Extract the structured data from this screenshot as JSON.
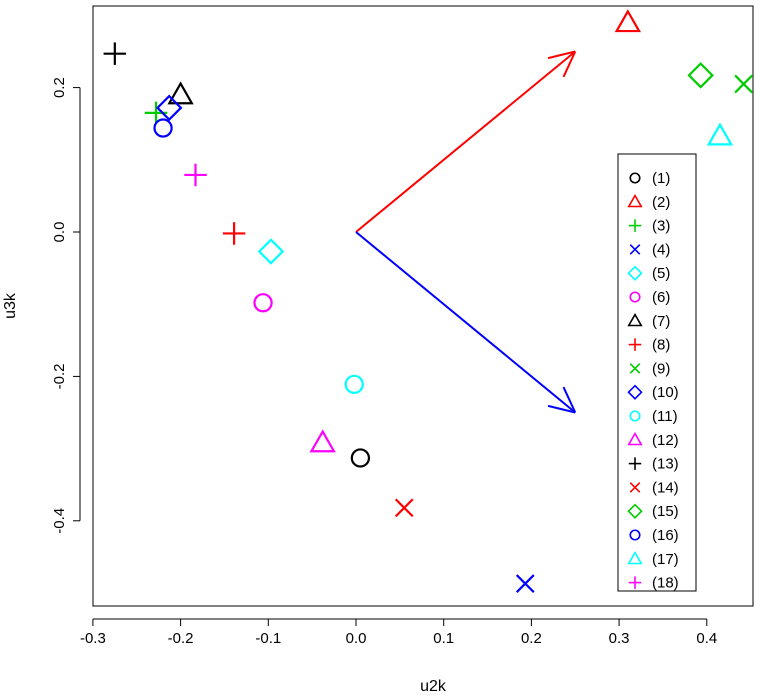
{
  "chart_data": {
    "type": "scatter",
    "xlabel": "u2k",
    "ylabel": "u3k",
    "xlim": [
      -0.3,
      0.45
    ],
    "ylim": [
      -0.52,
      0.31
    ],
    "x_ticks": [
      -0.3,
      -0.2,
      -0.1,
      0.0,
      0.1,
      0.2,
      0.3,
      0.4
    ],
    "x_tick_labels": [
      "-0.3",
      "-0.2",
      "-0.1",
      "0.0",
      "0.1",
      "0.2",
      "0.3",
      "0.4"
    ],
    "y_ticks": [
      -0.4,
      -0.2,
      0.0,
      0.2
    ],
    "y_tick_labels": [
      "-0.4",
      "-0.2",
      "0.0",
      "0.2"
    ],
    "grid": false,
    "legend_position": "right",
    "points": [
      {
        "label": "(1)",
        "x": 0.005,
        "y": -0.313,
        "shape": "circle",
        "color": "#000000"
      },
      {
        "label": "(2)",
        "x": 0.31,
        "y": 0.29,
        "shape": "triangle",
        "color": "#FF0000"
      },
      {
        "label": "(3)",
        "x": -0.228,
        "y": 0.165,
        "shape": "plus",
        "color": "#00CD00"
      },
      {
        "label": "(4)",
        "x": 0.193,
        "y": -0.487,
        "shape": "cross",
        "color": "#0000FF"
      },
      {
        "label": "(5)",
        "x": -0.097,
        "y": -0.027,
        "shape": "diamond",
        "color": "#00FFFF"
      },
      {
        "label": "(6)",
        "x": -0.106,
        "y": -0.098,
        "shape": "circle",
        "color": "#FF00FF"
      },
      {
        "label": "(7)",
        "x": -0.2,
        "y": 0.19,
        "shape": "triangle",
        "color": "#000000"
      },
      {
        "label": "(8)",
        "x": -0.139,
        "y": -0.002,
        "shape": "plus",
        "color": "#FF0000"
      },
      {
        "label": "(9)",
        "x": 0.442,
        "y": 0.205,
        "shape": "cross",
        "color": "#00CD00"
      },
      {
        "label": "(10)",
        "x": -0.213,
        "y": 0.172,
        "shape": "diamond",
        "color": "#0000FF"
      },
      {
        "label": "(11)",
        "x": -0.002,
        "y": -0.211,
        "shape": "circle",
        "color": "#00FFFF"
      },
      {
        "label": "(12)",
        "x": -0.038,
        "y": -0.292,
        "shape": "triangle",
        "color": "#FF00FF"
      },
      {
        "label": "(13)",
        "x": -0.275,
        "y": 0.247,
        "shape": "plus",
        "color": "#000000"
      },
      {
        "label": "(14)",
        "x": 0.055,
        "y": -0.382,
        "shape": "cross",
        "color": "#FF0000"
      },
      {
        "label": "(15)",
        "x": 0.393,
        "y": 0.217,
        "shape": "diamond",
        "color": "#00CD00"
      },
      {
        "label": "(16)",
        "x": -0.22,
        "y": 0.144,
        "shape": "circle",
        "color": "#0000FF"
      },
      {
        "label": "(17)",
        "x": 0.415,
        "y": 0.133,
        "shape": "triangle",
        "color": "#00FFFF"
      },
      {
        "label": "(18)",
        "x": -0.183,
        "y": 0.079,
        "shape": "plus",
        "color": "#FF00FF"
      }
    ],
    "arrows": [
      {
        "x0": 0.0,
        "y0": 0.0,
        "x1": 0.25,
        "y1": 0.25,
        "color": "#FF0000"
      },
      {
        "x0": 0.0,
        "y0": 0.0,
        "x1": 0.25,
        "y1": -0.25,
        "color": "#0000FF"
      }
    ]
  }
}
